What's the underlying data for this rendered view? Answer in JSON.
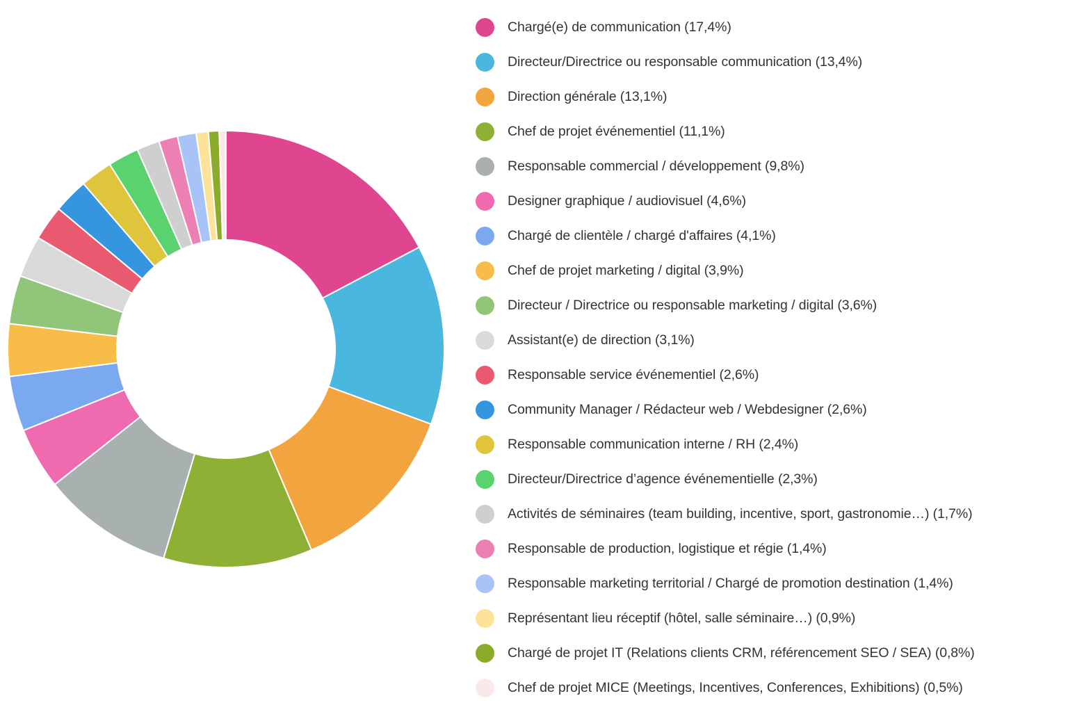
{
  "chart_data": {
    "type": "pie",
    "variant": "donut",
    "legend_position": "right",
    "start_angle": "top, clockwise",
    "slices": [
      {
        "label": "Chargé(e) de communication (17,4%)",
        "value": 17.4,
        "color": "#e0458f"
      },
      {
        "label": "Directeur/Directrice ou responsable communication (13,4%)",
        "value": 13.4,
        "color": "#4ab8de"
      },
      {
        "label": "Direction générale (13,1%)",
        "value": 13.1,
        "color": "#f2a53f"
      },
      {
        "label": "Chef de projet événementiel (11,1%)",
        "value": 11.1,
        "color": "#8eb034"
      },
      {
        "label": "Responsable commercial / développement (9,8%)",
        "value": 9.8,
        "color": "#a9b0b0"
      },
      {
        "label": "Designer graphique / audiovisuel (4,6%)",
        "value": 4.6,
        "color": "#ef6aae"
      },
      {
        "label": "Chargé de clientèle / chargé d'affaires (4,1%)",
        "value": 4.1,
        "color": "#7aa9f0"
      },
      {
        "label": "Chef de projet marketing / digital (3,9%)",
        "value": 3.9,
        "color": "#f8bd48"
      },
      {
        "label": "Directeur / Directrice ou responsable marketing / digital (3,6%)",
        "value": 3.6,
        "color": "#90c57a"
      },
      {
        "label": "Assistant(e) de direction (3,1%)",
        "value": 3.1,
        "color": "#d9d9d9"
      },
      {
        "label": "Responsable service événementiel (2,6%)",
        "value": 2.6,
        "color": "#e95a70"
      },
      {
        "label": "Community Manager / Rédacteur web / Webdesigner (2,6%)",
        "value": 2.6,
        "color": "#3596df"
      },
      {
        "label": "Responsable communication interne / RH (2,4%)",
        "value": 2.4,
        "color": "#dfc53c"
      },
      {
        "label": "Directeur/Directrice d’agence événementielle (2,3%)",
        "value": 2.3,
        "color": "#5ad36e"
      },
      {
        "label": "Activités de séminaires (team building, incentive, sport, gastronomie…) (1,7%)",
        "value": 1.7,
        "color": "#cfcfcf"
      },
      {
        "label": "Responsable de production, logistique et régie (1,4%)",
        "value": 1.4,
        "color": "#ec80b4"
      },
      {
        "label": "Responsable marketing territorial / Chargé de promotion destination (1,4%)",
        "value": 1.4,
        "color": "#a8c4f6"
      },
      {
        "label": "Représentant lieu réceptif (hôtel, salle séminaire…) (0,9%)",
        "value": 0.9,
        "color": "#fde39a"
      },
      {
        "label": "Chargé de projet IT (Relations clients CRM, référencement SEO / SEA) (0,8%)",
        "value": 0.8,
        "color": "#8aac2a"
      },
      {
        "label": "Chef de projet MICE (Meetings, Incentives, Conferences, Exhibitions) (0,5%)",
        "value": 0.5,
        "color": "#fbe9e9"
      }
    ]
  }
}
